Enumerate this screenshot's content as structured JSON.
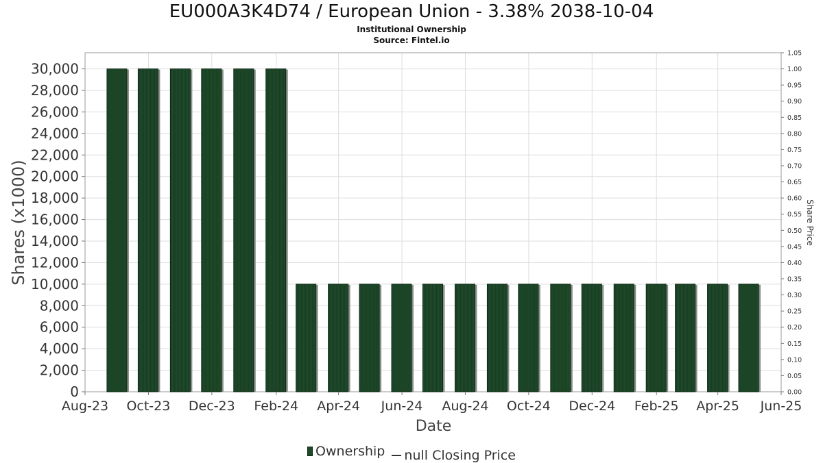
{
  "header": {
    "title": "EU000A3K4D74 / European Union - 3.38% 2038-10-04",
    "subtitle": "Institutional Ownership",
    "source": "Source: Fintel.io"
  },
  "legend": {
    "ownership": "Ownership",
    "closing_price": "null Closing Price"
  },
  "colors": {
    "bar_fill": "#1f4a2a",
    "bar_stroke": "#0b2612",
    "bar_shadow": "#8a8f8a",
    "grid": "#dddddd"
  },
  "chart_data": {
    "type": "bar",
    "xlabel": "Date",
    "ylabel": "Shares (x1000)",
    "y2label": "Share Price",
    "ylim": [
      0,
      31500
    ],
    "y2lim": [
      0,
      1.05
    ],
    "yticks": [
      "0",
      "2,000",
      "4,000",
      "6,000",
      "8,000",
      "10,000",
      "12,000",
      "14,000",
      "16,000",
      "18,000",
      "20,000",
      "22,000",
      "24,000",
      "26,000",
      "28,000",
      "30,000"
    ],
    "y2ticks": [
      "0.00",
      "0.05",
      "0.10",
      "0.15",
      "0.20",
      "0.25",
      "0.30",
      "0.35",
      "0.40",
      "0.45",
      "0.50",
      "0.55",
      "0.60",
      "0.65",
      "0.70",
      "0.75",
      "0.80",
      "0.85",
      "0.90",
      "0.95",
      "1.00",
      "1.05"
    ],
    "xlim": [
      "2023-08-01",
      "2025-06-01"
    ],
    "xticks": [
      {
        "date": "2023-08-01",
        "label": "Aug-23"
      },
      {
        "date": "2023-10-01",
        "label": "Oct-23"
      },
      {
        "date": "2023-12-01",
        "label": "Dec-23"
      },
      {
        "date": "2024-02-01",
        "label": "Feb-24"
      },
      {
        "date": "2024-04-01",
        "label": "Apr-24"
      },
      {
        "date": "2024-06-01",
        "label": "Jun-24"
      },
      {
        "date": "2024-08-01",
        "label": "Aug-24"
      },
      {
        "date": "2024-10-01",
        "label": "Oct-24"
      },
      {
        "date": "2024-12-01",
        "label": "Dec-24"
      },
      {
        "date": "2025-02-01",
        "label": "Feb-25"
      },
      {
        "date": "2025-04-01",
        "label": "Apr-25"
      },
      {
        "date": "2025-06-01",
        "label": "Jun-25"
      }
    ],
    "grid": true,
    "legend_position": "bottom",
    "series": [
      {
        "name": "Ownership",
        "points": [
          {
            "date": "2023-09-01",
            "value": 30000
          },
          {
            "date": "2023-10-01",
            "value": 30000
          },
          {
            "date": "2023-11-01",
            "value": 30000
          },
          {
            "date": "2023-12-01",
            "value": 30000
          },
          {
            "date": "2024-01-01",
            "value": 30000
          },
          {
            "date": "2024-02-01",
            "value": 30000
          },
          {
            "date": "2024-03-01",
            "value": 10000
          },
          {
            "date": "2024-04-01",
            "value": 10000
          },
          {
            "date": "2024-05-01",
            "value": 10000
          },
          {
            "date": "2024-06-01",
            "value": 10000
          },
          {
            "date": "2024-07-01",
            "value": 10000
          },
          {
            "date": "2024-08-01",
            "value": 10000
          },
          {
            "date": "2024-09-01",
            "value": 10000
          },
          {
            "date": "2024-10-01",
            "value": 10000
          },
          {
            "date": "2024-11-01",
            "value": 10000
          },
          {
            "date": "2024-12-01",
            "value": 10000
          },
          {
            "date": "2025-01-01",
            "value": 10000
          },
          {
            "date": "2025-02-01",
            "value": 10000
          },
          {
            "date": "2025-03-01",
            "value": 10000
          },
          {
            "date": "2025-04-01",
            "value": 10000
          },
          {
            "date": "2025-05-01",
            "value": 10000
          }
        ]
      }
    ]
  }
}
